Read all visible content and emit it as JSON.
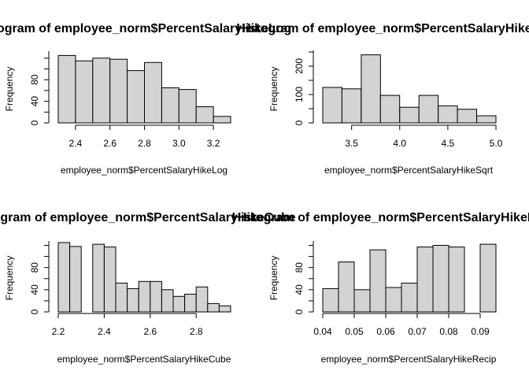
{
  "chart_data": [
    {
      "type": "bar",
      "title": "Histogram of employee_norm$PercentSalaryHikeLog",
      "xlabel": "employee_norm$PercentSalaryHikeLog",
      "ylabel": "Frequency",
      "bin_edges": [
        2.3,
        2.4,
        2.5,
        2.6,
        2.7,
        2.8,
        2.9,
        3.0,
        3.1,
        3.2,
        3.3
      ],
      "values": [
        125,
        115,
        120,
        118,
        97,
        112,
        65,
        62,
        30,
        12
      ],
      "xlim": [
        2.3,
        3.3
      ],
      "ylim": [
        0,
        130
      ],
      "xticks": [
        "2.4",
        "2.6",
        "2.8",
        "3.0",
        "3.2"
      ],
      "yticks": [
        "0",
        "40",
        "80"
      ]
    },
    {
      "type": "bar",
      "title": "Histogram of employee_norm$PercentSalaryHikeSqrt",
      "xlabel": "employee_norm$PercentSalaryHikeSqrt",
      "ylabel": "Frequency",
      "bin_edges": [
        3.2,
        3.4,
        3.6,
        3.8,
        4.0,
        4.2,
        4.4,
        4.6,
        4.8,
        5.0
      ],
      "values": [
        125,
        120,
        240,
        97,
        55,
        97,
        60,
        48,
        25
      ],
      "xlim": [
        3.2,
        5.0
      ],
      "ylim": [
        0,
        250
      ],
      "xticks": [
        "3.5",
        "4.0",
        "4.5",
        "5.0"
      ],
      "yticks": [
        "0",
        "100",
        "200"
      ]
    },
    {
      "type": "bar",
      "title": "Histogram of employee_norm$PercentSalaryHikeCube",
      "xlabel": "employee_norm$PercentSalaryHikeCube",
      "ylabel": "Frequency",
      "bin_edges": [
        2.2,
        2.25,
        2.3,
        2.35,
        2.4,
        2.45,
        2.5,
        2.55,
        2.6,
        2.65,
        2.7,
        2.75,
        2.8,
        2.85,
        2.9,
        2.95
      ],
      "values": [
        125,
        118,
        0,
        122,
        117,
        52,
        42,
        55,
        55,
        40,
        28,
        32,
        45,
        15,
        11
      ],
      "xlim": [
        2.2,
        2.95
      ],
      "ylim": [
        0,
        125
      ],
      "xticks": [
        "2.2",
        "2.4",
        "2.6",
        "2.8"
      ],
      "yticks": [
        "0",
        "40",
        "80"
      ]
    },
    {
      "type": "bar",
      "title": "Histogram of employee_norm$PercentSalaryHikeRecip",
      "xlabel": "employee_norm$PercentSalaryHikeRecip",
      "ylabel": "Frequency",
      "bin_edges": [
        0.04,
        0.045,
        0.05,
        0.055,
        0.06,
        0.065,
        0.07,
        0.075,
        0.08,
        0.085,
        0.09,
        0.095
      ],
      "values": [
        42,
        90,
        40,
        112,
        44,
        52,
        117,
        120,
        117,
        0,
        122
      ],
      "xlim": [
        0.04,
        0.095
      ],
      "ylim": [
        0,
        125
      ],
      "xticks": [
        "0.04",
        "0.05",
        "0.06",
        "0.07",
        "0.08",
        "0.09"
      ],
      "yticks": [
        "0",
        "40",
        "80"
      ]
    }
  ],
  "colors": {
    "bar_fill": "#d3d3d3",
    "bar_stroke": "#000000"
  }
}
